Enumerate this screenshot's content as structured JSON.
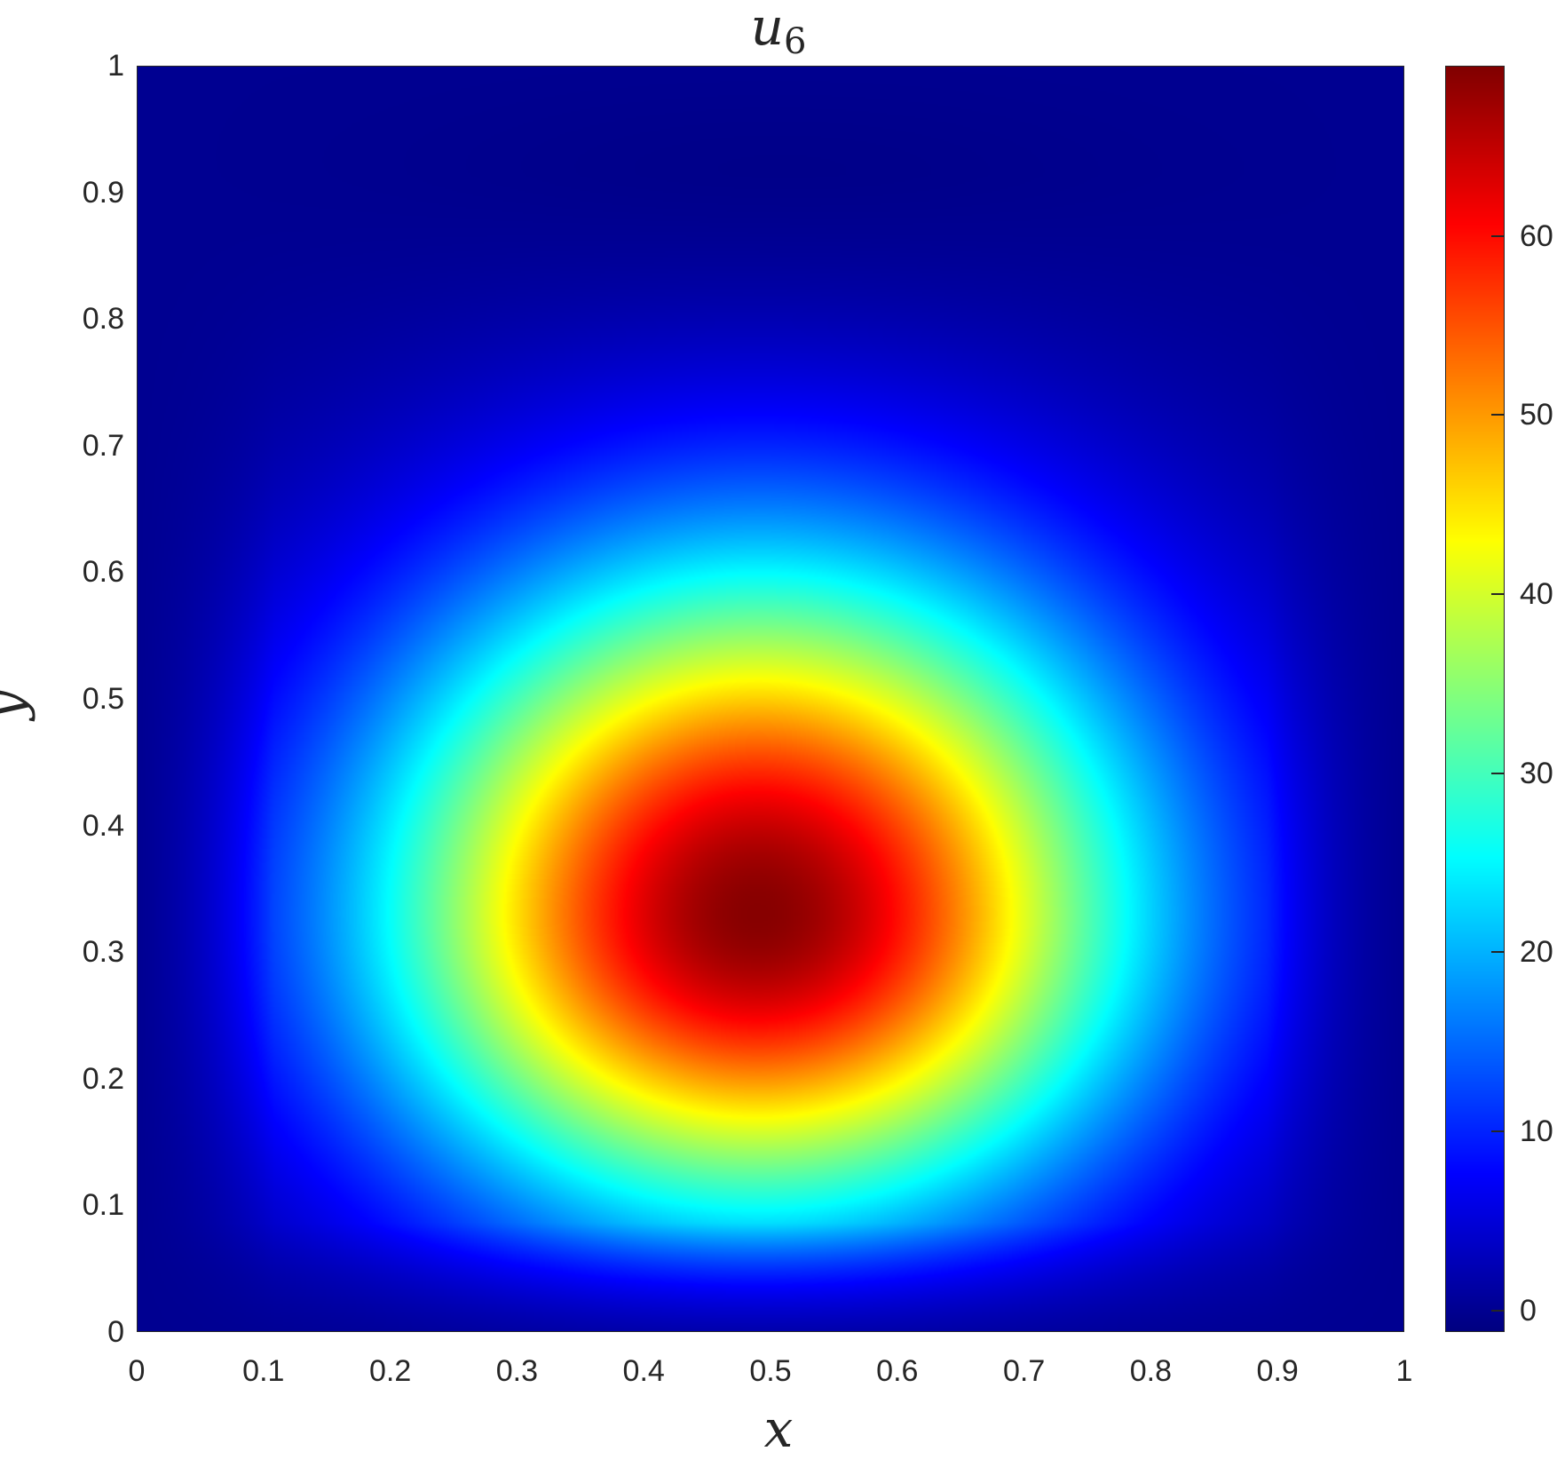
{
  "chart_data": {
    "type": "heatmap",
    "title": "u",
    "title_subscript": "6",
    "xlabel": "x",
    "ylabel": "y",
    "xlim": [
      0,
      1
    ],
    "ylim": [
      0,
      1
    ],
    "xticks": [
      "0",
      "0.1",
      "0.2",
      "0.3",
      "0.4",
      "0.5",
      "0.6",
      "0.7",
      "0.8",
      "0.9",
      "1"
    ],
    "yticks": [
      "0",
      "0.1",
      "0.2",
      "0.3",
      "0.4",
      "0.5",
      "0.6",
      "0.7",
      "0.8",
      "0.9",
      "1"
    ],
    "colormap": "jet",
    "colorbar": {
      "limits": [
        -1.2,
        69.5
      ],
      "ticks": [
        "0",
        "10",
        "20",
        "30",
        "40",
        "50",
        "60"
      ]
    },
    "peak": {
      "x": 0.49,
      "y": 0.33,
      "value": 69
    },
    "grid": false
  }
}
